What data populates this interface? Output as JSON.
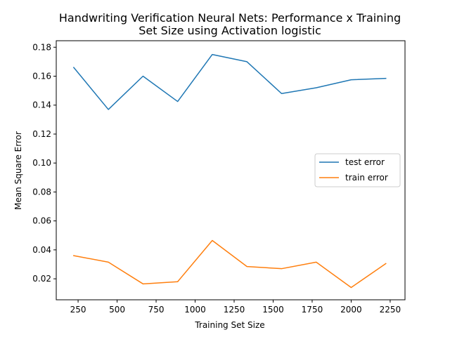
{
  "chart_data": {
    "type": "line",
    "title_line1": "Handwriting Verification Neural Nets: Performance x Training",
    "title_line2": "Set Size using Activation logistic",
    "xlabel": "Training Set Size",
    "ylabel": "Mean Square Error",
    "xlim": [
      110,
      2345
    ],
    "ylim": [
      0.0055,
      0.1845
    ],
    "xticks": [
      250,
      500,
      750,
      1000,
      1250,
      1500,
      1750,
      2000,
      2250
    ],
    "xtick_labels": [
      "250",
      "500",
      "750",
      "1000",
      "1250",
      "1500",
      "1750",
      "2000",
      "2250"
    ],
    "yticks": [
      0.02,
      0.04,
      0.06,
      0.08,
      0.1,
      0.12,
      0.14,
      0.16,
      0.18
    ],
    "ytick_labels": [
      "0.02",
      "0.04",
      "0.06",
      "0.08",
      "0.10",
      "0.12",
      "0.14",
      "0.16",
      "0.18"
    ],
    "grid": false,
    "legend_position": "center-right",
    "x": [
      222,
      444,
      666,
      888,
      1110,
      1332,
      1554,
      1776,
      2000,
      2222
    ],
    "series": [
      {
        "name": "test error",
        "color": "#1f77b4",
        "values": [
          0.166,
          0.137,
          0.16,
          0.1425,
          0.175,
          0.17,
          0.148,
          0.152,
          0.1575,
          0.1585
        ]
      },
      {
        "name": "train error",
        "color": "#ff7f0e",
        "values": [
          0.036,
          0.0315,
          0.0165,
          0.018,
          0.0465,
          0.0285,
          0.027,
          0.0315,
          0.014,
          0.0305
        ]
      }
    ]
  }
}
